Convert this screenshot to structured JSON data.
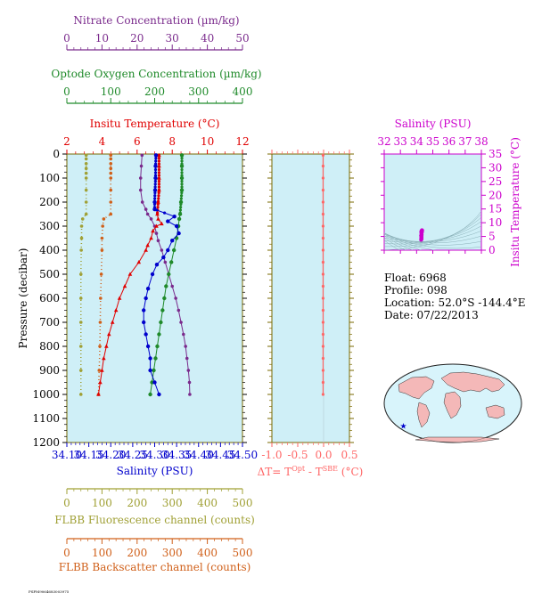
{
  "colors": {
    "nitrate": "#7a2a8c",
    "oxygen": "#1f8a2a",
    "temperature": "#e00000",
    "salinity": "#0000cc",
    "salinity_top": "#cc00cc",
    "fluorescence": "#a0a035",
    "backscatter": "#d0601a",
    "delta": "#ff6666",
    "plot_bg": "#cfeff7",
    "frame": "#7a6a00"
  },
  "text": {
    "nitrate_label": "Nitrate Concentration (µm/kg)",
    "oxygen_label": "Optode Oxygen Concentration (µm/kg)",
    "temperature_label": "Insitu Temperature (°C)",
    "salinity_label": "Salinity (PSU)",
    "pressure_label": "Pressure (decibar)",
    "fluorescence_label": "FLBB Fluorescence channel (counts)",
    "backscatter_label": "FLBB Backscatter channel (counts)",
    "delta_label_main": "ΔT= T",
    "delta_label_sup1": "Opt",
    "delta_label_mid": " - T",
    "delta_label_sup2": "SBE",
    "delta_label_end": " (°C)",
    "ts_salinity_label": "Salinity (PSU)",
    "ts_temperature_label": "Insitu Temperature (°C)",
    "float_line": "Float:  6968",
    "profile_line": "Profile:  098",
    "location_line": "Location:  52.0°S  -144.4°E",
    "date_line": "Date:  07/22/2013",
    "footer_tag": "PSPM9064683003975"
  },
  "chart_data": [
    {
      "type": "line",
      "name": "main-profile",
      "y_axis": {
        "label": "Pressure (decibar)",
        "range": [
          1200,
          0
        ],
        "ticks": [
          0,
          100,
          200,
          300,
          400,
          500,
          600,
          700,
          800,
          900,
          1000,
          1100,
          1200
        ]
      },
      "axes": {
        "nitrate": {
          "range": [
            0,
            50
          ],
          "ticks": [
            0,
            10,
            20,
            30,
            40,
            50
          ]
        },
        "oxygen": {
          "range": [
            0,
            400
          ],
          "ticks": [
            0,
            100,
            200,
            300,
            400
          ]
        },
        "temperature": {
          "range": [
            2,
            12
          ],
          "ticks": [
            2,
            4,
            6,
            8,
            10,
            12
          ]
        },
        "salinity": {
          "range": [
            34.1,
            34.5
          ],
          "ticks": [
            "34.10",
            "34.15",
            "34.20",
            "34.25",
            "34.30",
            "34.35",
            "34.40",
            "34.45",
            "34.50"
          ]
        },
        "fluorescence": {
          "range": [
            0,
            500
          ],
          "ticks": [
            0,
            100,
            200,
            300,
            400,
            500
          ]
        },
        "backscatter": {
          "range": [
            0,
            500
          ],
          "ticks": [
            0,
            100,
            200,
            300,
            400,
            500
          ]
        }
      },
      "series": [
        {
          "key": "fluorescence",
          "pressure": [
            5,
            20,
            40,
            60,
            80,
            100,
            150,
            200,
            250,
            270,
            300,
            350,
            400,
            500,
            600,
            700,
            800,
            900,
            1000
          ],
          "values": [
            55,
            55,
            55,
            55,
            55,
            55,
            55,
            55,
            55,
            45,
            42,
            42,
            41,
            40,
            40,
            40,
            40,
            40,
            40
          ]
        },
        {
          "key": "backscatter",
          "pressure": [
            5,
            20,
            40,
            60,
            80,
            100,
            150,
            200,
            250,
            270,
            300,
            350,
            400,
            500,
            600,
            700,
            800,
            900,
            1000
          ],
          "values": [
            125,
            125,
            125,
            125,
            125,
            125,
            125,
            125,
            125,
            105,
            102,
            100,
            100,
            98,
            96,
            95,
            94,
            92,
            90
          ]
        },
        {
          "key": "nitrate",
          "pressure": [
            5,
            50,
            100,
            150,
            200,
            230,
            250,
            270,
            300,
            330,
            360,
            400,
            450,
            500,
            550,
            600,
            650,
            700,
            750,
            800,
            850,
            900,
            950,
            1000
          ],
          "values": [
            21.4,
            21.2,
            21.0,
            21.0,
            21.5,
            22.5,
            23.0,
            24.0,
            25.0,
            25.5,
            26.0,
            27.0,
            28.0,
            29.0,
            30.0,
            31.0,
            31.8,
            32.5,
            33.2,
            33.8,
            34.2,
            34.6,
            34.9,
            35.0
          ]
        },
        {
          "key": "oxygen",
          "pressure": [
            5,
            50,
            100,
            150,
            200,
            250,
            270,
            300,
            350,
            400,
            450,
            500,
            550,
            600,
            650,
            700,
            750,
            800,
            850,
            900,
            950,
            1000
          ],
          "values": [
            262,
            262,
            262,
            262,
            260,
            258,
            256,
            254,
            250,
            244,
            238,
            232,
            226,
            222,
            218,
            214,
            210,
            206,
            202,
            198,
            194,
            190
          ]
        },
        {
          "key": "temperature",
          "pressure": [
            5,
            50,
            100,
            150,
            200,
            250,
            270,
            290,
            300,
            320,
            350,
            380,
            400,
            450,
            500,
            550,
            600,
            650,
            700,
            750,
            800,
            850,
            900,
            950,
            1000
          ],
          "values": [
            7.25,
            7.25,
            7.25,
            7.25,
            7.2,
            7.15,
            7.2,
            7.4,
            7.1,
            6.9,
            6.8,
            6.6,
            6.5,
            6.1,
            5.6,
            5.3,
            5.0,
            4.8,
            4.6,
            4.4,
            4.25,
            4.1,
            4.0,
            3.9,
            3.8
          ]
        },
        {
          "key": "salinity",
          "pressure": [
            5,
            50,
            100,
            150,
            200,
            230,
            260,
            280,
            300,
            330,
            360,
            400,
            430,
            460,
            500,
            560,
            600,
            650,
            700,
            750,
            800,
            850,
            900,
            950,
            1000
          ],
          "values": [
            34.303,
            34.302,
            34.302,
            34.301,
            34.3,
            34.3,
            34.345,
            34.33,
            34.35,
            34.355,
            34.34,
            34.33,
            34.32,
            34.305,
            34.295,
            34.285,
            34.28,
            34.275,
            34.275,
            34.28,
            34.285,
            34.29,
            34.29,
            34.3,
            34.31
          ]
        }
      ]
    },
    {
      "type": "scatter",
      "name": "delta-t",
      "xlabel": "ΔT= T^Opt - T^SBE (°C)",
      "x_range": [
        -1.0,
        0.5
      ],
      "x_ticks": [
        "-1.0",
        "-0.5",
        "0.0",
        "0.5"
      ],
      "y_range": [
        1200,
        0
      ],
      "pressure": [
        5,
        50,
        100,
        150,
        200,
        250,
        300,
        350,
        400,
        450,
        500,
        550,
        600,
        650,
        700,
        750,
        800,
        850,
        900,
        950,
        1000
      ],
      "values": [
        -0.01,
        -0.01,
        -0.01,
        -0.01,
        -0.01,
        -0.01,
        -0.01,
        -0.01,
        -0.01,
        -0.01,
        -0.01,
        -0.01,
        -0.01,
        -0.01,
        -0.01,
        -0.01,
        -0.01,
        -0.01,
        -0.01,
        -0.01,
        -0.01
      ]
    },
    {
      "type": "scatter",
      "name": "ts-diagram",
      "xlabel": "Salinity (PSU)",
      "ylabel": "Insitu Temperature (°C)",
      "x_range": [
        32,
        38
      ],
      "x_ticks": [
        32,
        33,
        34,
        35,
        36,
        37,
        38
      ],
      "y_range": [
        0,
        35
      ],
      "y_ticks": [
        0,
        5,
        10,
        15,
        20,
        25,
        30,
        35
      ],
      "salinity": [
        34.28,
        34.29,
        34.3,
        34.3,
        34.31,
        34.3,
        34.32,
        34.33,
        34.34,
        34.33,
        34.32,
        34.3,
        34.29,
        34.28,
        34.29,
        34.3,
        34.31
      ],
      "temperature": [
        3.8,
        4.2,
        4.6,
        5.0,
        5.6,
        6.1,
        6.5,
        6.8,
        7.2,
        7.25,
        7.1,
        6.9,
        6.6,
        5.3,
        4.5,
        4.0,
        7.0
      ]
    }
  ],
  "map": {
    "marker_lat": -52.0,
    "marker_lon": -144.4
  }
}
